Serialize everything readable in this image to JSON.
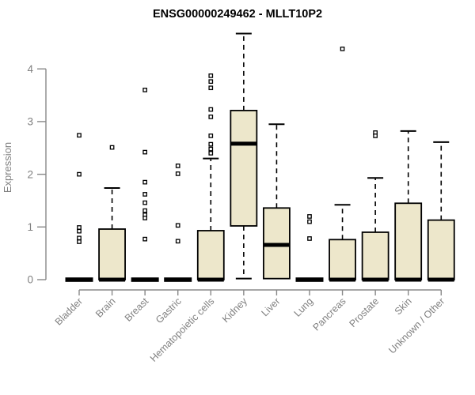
{
  "chart_data": {
    "type": "box",
    "title": "ENSG00000249462 - MLLT10P2",
    "ylabel": "Expression",
    "xlabel": "",
    "ylim": [
      0,
      4.7
    ],
    "yticks": [
      0,
      1,
      2,
      3,
      4
    ],
    "grid": false,
    "legend": "none",
    "colors": {
      "box_fill": "#EDE7CB",
      "box_border": "#000000",
      "median": "#000000",
      "whisker": "#000000",
      "outlier_fill": "#ffffff",
      "axis": "#888888",
      "tick_label": "#808080",
      "title": "#000000",
      "background": "#ffffff"
    },
    "categories": [
      "Bladder",
      "Brain",
      "Breast",
      "Gastric",
      "Hematopoietic cells",
      "Kidney",
      "Liver",
      "Lung",
      "Pancreas",
      "Prostate",
      "Skin",
      "Unknown / Other"
    ],
    "series": [
      {
        "category": "Bladder",
        "q1": 0,
        "median": 0,
        "q3": 0,
        "whisker_low": 0,
        "whisker_high": 0,
        "outliers": [
          2.74,
          2.0,
          0.99,
          0.92,
          0.79,
          0.72
        ]
      },
      {
        "category": "Brain",
        "q1": 0,
        "median": 0,
        "q3": 0.96,
        "whisker_low": 0,
        "whisker_high": 1.74,
        "outliers": [
          2.51
        ]
      },
      {
        "category": "Breast",
        "q1": 0,
        "median": 0,
        "q3": 0,
        "whisker_low": 0,
        "whisker_high": 0,
        "outliers": [
          3.6,
          2.42,
          1.85,
          1.62,
          1.46,
          1.31,
          1.23,
          1.17,
          0.77
        ]
      },
      {
        "category": "Gastric",
        "q1": 0,
        "median": 0,
        "q3": 0,
        "whisker_low": 0,
        "whisker_high": 0,
        "outliers": [
          2.16,
          2.01,
          1.03,
          0.73
        ]
      },
      {
        "category": "Hematopoietic cells",
        "q1": 0,
        "median": 0,
        "q3": 0.93,
        "whisker_low": 0,
        "whisker_high": 2.3,
        "outliers": [
          3.87,
          3.76,
          3.64,
          3.23,
          3.09,
          2.73,
          2.57,
          2.48,
          2.4
        ]
      },
      {
        "category": "Kidney",
        "q1": 1.02,
        "median": 2.58,
        "q3": 3.21,
        "whisker_low": 0.02,
        "whisker_high": 4.67,
        "outliers": []
      },
      {
        "category": "Liver",
        "q1": 0.02,
        "median": 0.66,
        "q3": 1.36,
        "whisker_low": 0.02,
        "whisker_high": 2.95,
        "outliers": []
      },
      {
        "category": "Lung",
        "q1": 0,
        "median": 0,
        "q3": 0,
        "whisker_low": 0,
        "whisker_high": 0,
        "outliers": [
          1.2,
          1.1,
          0.78
        ]
      },
      {
        "category": "Pancreas",
        "q1": 0,
        "median": 0,
        "q3": 0.76,
        "whisker_low": 0,
        "whisker_high": 1.42,
        "outliers": [
          4.38
        ]
      },
      {
        "category": "Prostate",
        "q1": 0,
        "median": 0,
        "q3": 0.9,
        "whisker_low": 0,
        "whisker_high": 1.93,
        "outliers": [
          2.79,
          2.73
        ]
      },
      {
        "category": "Skin",
        "q1": 0,
        "median": 0,
        "q3": 1.45,
        "whisker_low": 0,
        "whisker_high": 2.82,
        "outliers": []
      },
      {
        "category": "Unknown / Other",
        "q1": 0,
        "median": 0,
        "q3": 1.13,
        "whisker_low": 0,
        "whisker_high": 2.61,
        "outliers": []
      }
    ]
  }
}
